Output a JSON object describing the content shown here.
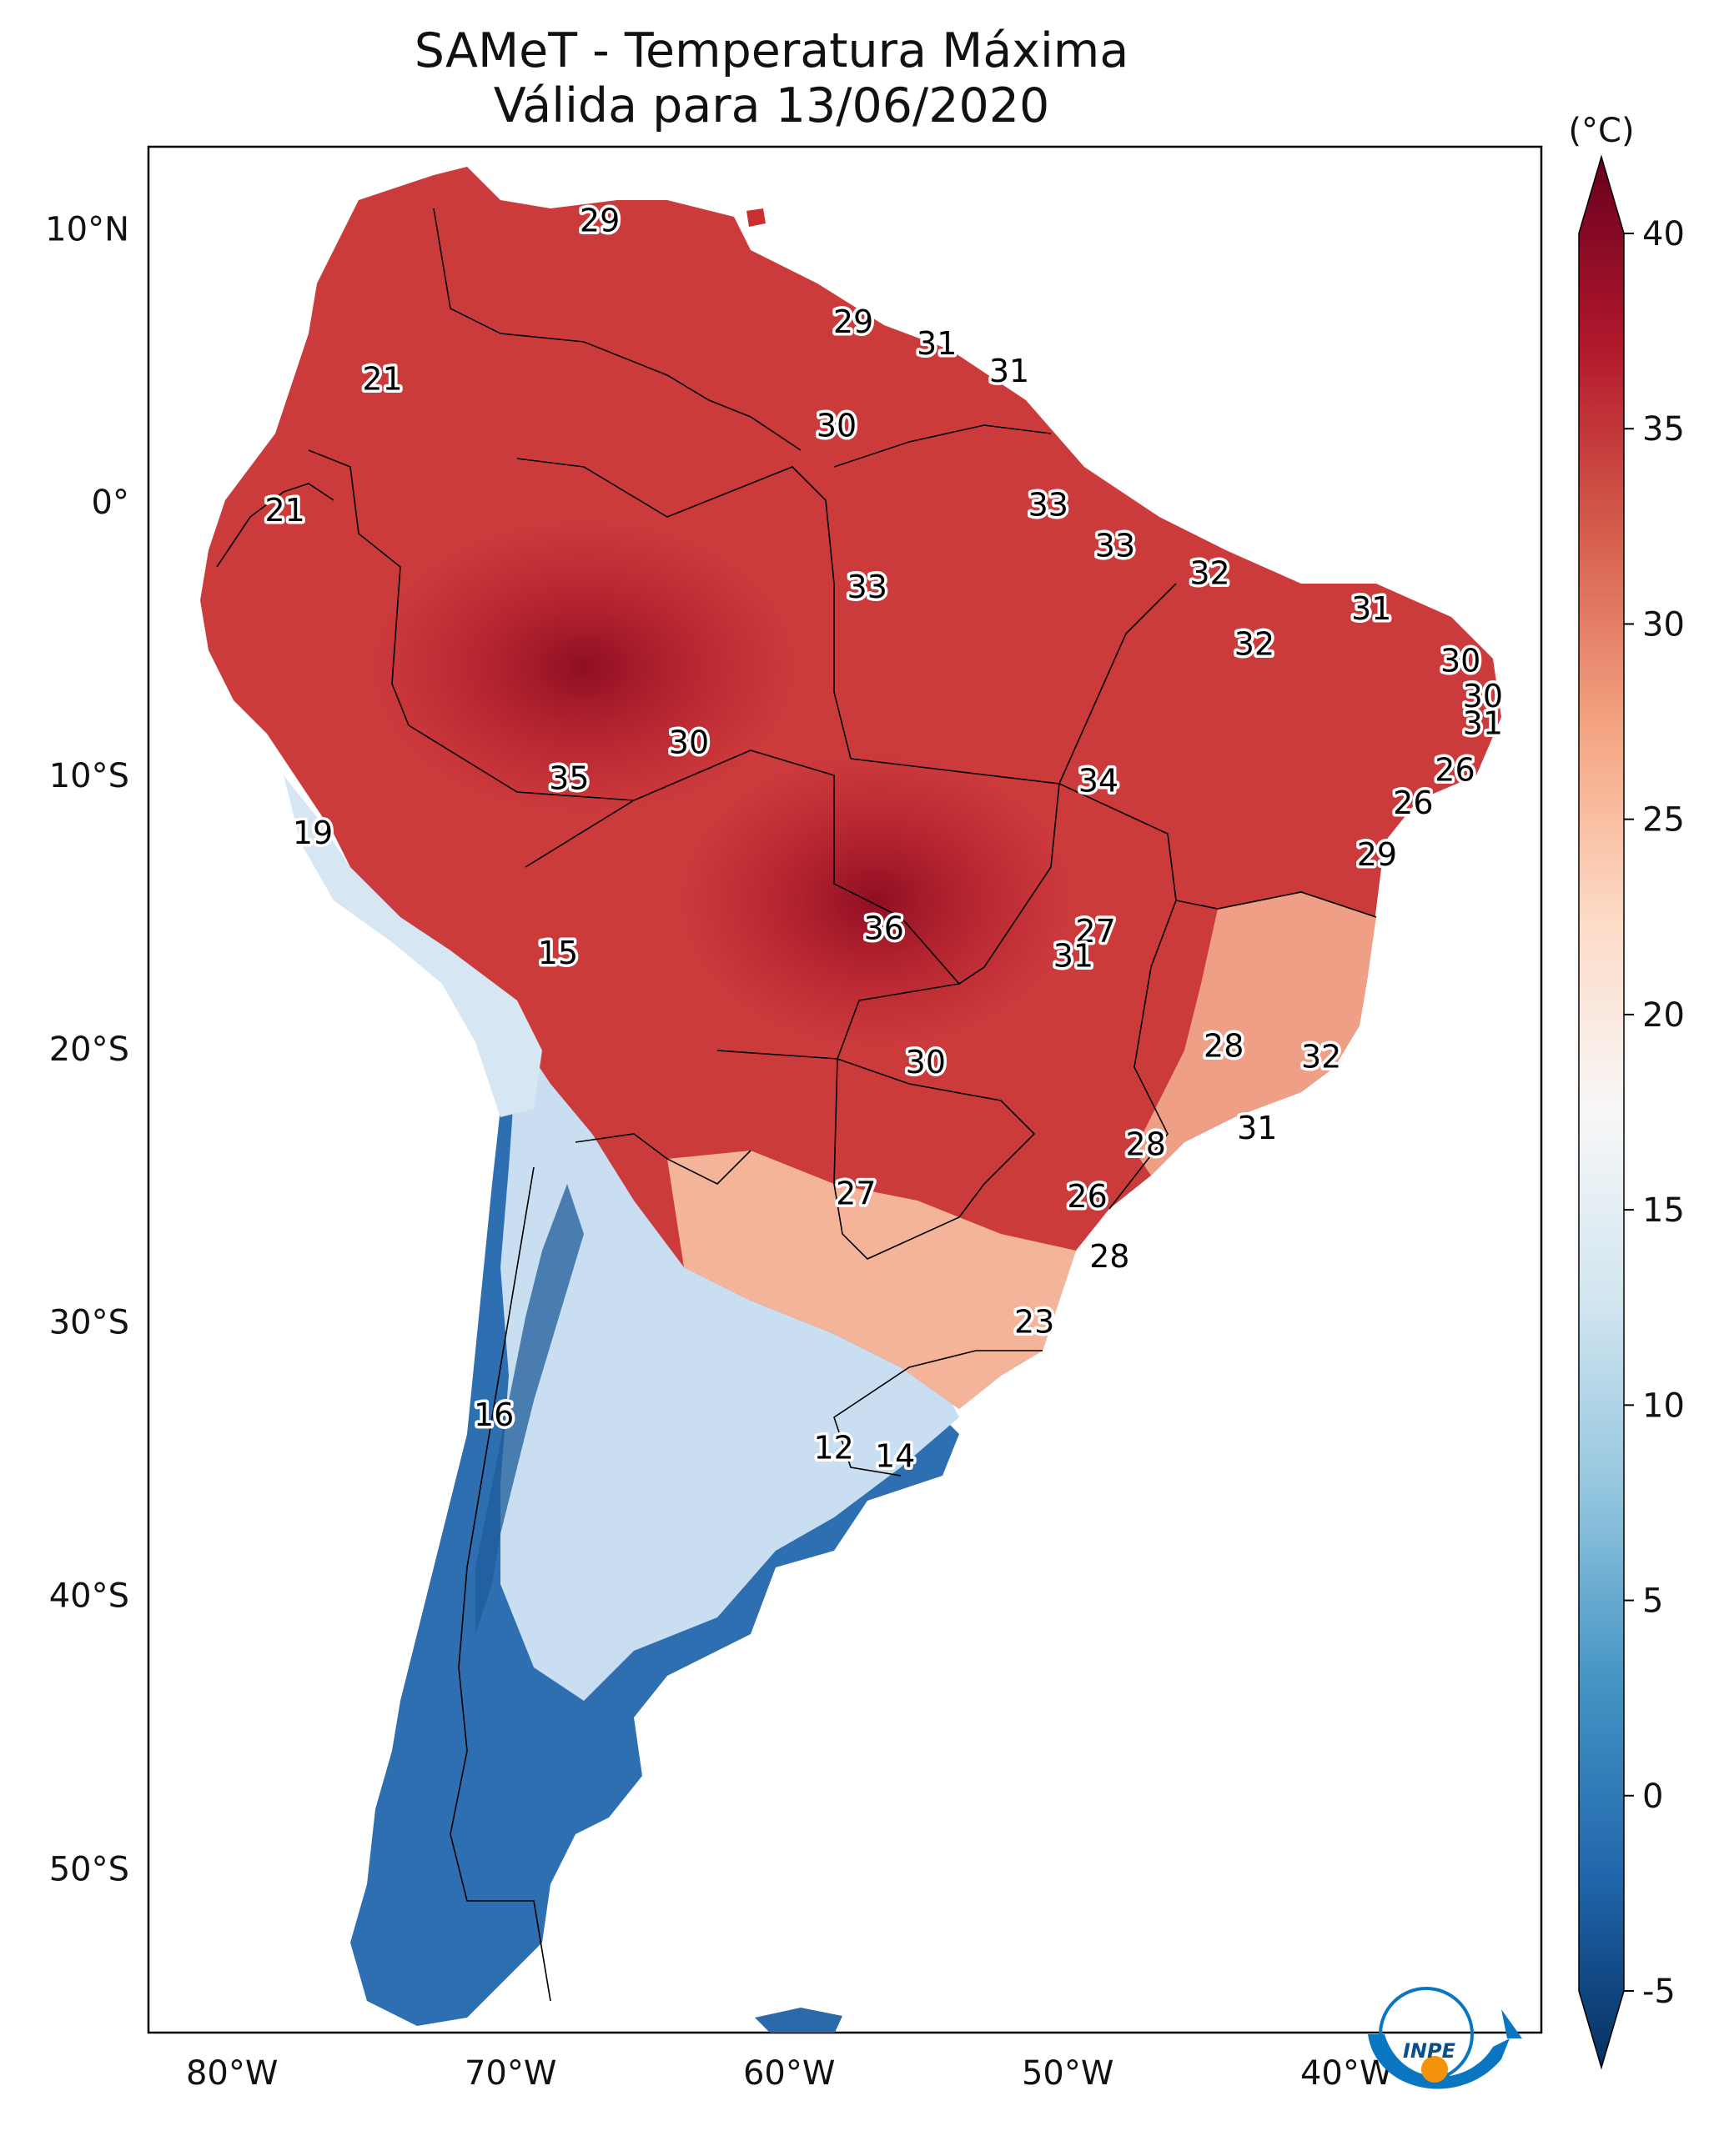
{
  "title": "SAMeT - Temperatura Máxima",
  "subtitle": "Válida para 13/06/2020",
  "colorbar": {
    "unit": "(°C)",
    "min": -5,
    "max": 40,
    "ticks": [
      "40",
      "35",
      "30",
      "25",
      "20",
      "15",
      "10",
      "5",
      "0",
      "-5"
    ],
    "extend": "both",
    "colormap": [
      "#053061",
      "#2166ac",
      "#4393c3",
      "#92c5de",
      "#d1e5f0",
      "#f7f7f7",
      "#fddbc7",
      "#f4a582",
      "#d6604d",
      "#b2182b",
      "#67001f"
    ]
  },
  "axes": {
    "lat_labels": [
      "10°N",
      "0°",
      "10°S",
      "20°S",
      "30°S",
      "40°S",
      "50°S"
    ],
    "lon_labels": [
      "80°W",
      "70°W",
      "60°W",
      "50°W",
      "40°W"
    ],
    "lat_range": [
      -56,
      13
    ],
    "lon_range": [
      -83,
      -33
    ]
  },
  "logo": {
    "text": "INPE"
  },
  "temperature_labels": [
    {
      "text": "29",
      "lon": -66.8,
      "lat": 10.3
    },
    {
      "text": "21",
      "lon": -74.6,
      "lat": 4.5
    },
    {
      "text": "29",
      "lon": -57.7,
      "lat": 6.6
    },
    {
      "text": "31",
      "lon": -54.7,
      "lat": 5.8
    },
    {
      "text": "31",
      "lon": -52.1,
      "lat": 4.8
    },
    {
      "text": "30",
      "lon": -58.3,
      "lat": 2.8
    },
    {
      "text": "21",
      "lon": -78.1,
      "lat": -0.3
    },
    {
      "text": "33",
      "lon": -50.7,
      "lat": -0.1
    },
    {
      "text": "33",
      "lon": -48.3,
      "lat": -1.6
    },
    {
      "text": "33",
      "lon": -57.2,
      "lat": -3.1
    },
    {
      "text": "32",
      "lon": -44.9,
      "lat": -2.6
    },
    {
      "text": "31",
      "lon": -39.1,
      "lat": -3.9
    },
    {
      "text": "32",
      "lon": -43.3,
      "lat": -5.2
    },
    {
      "text": "30",
      "lon": -35.9,
      "lat": -5.8
    },
    {
      "text": "30",
      "lon": -35.1,
      "lat": -7.1
    },
    {
      "text": "31",
      "lon": -35.1,
      "lat": -8.1
    },
    {
      "text": "30",
      "lon": -63.6,
      "lat": -8.8
    },
    {
      "text": "35",
      "lon": -67.9,
      "lat": -10.1
    },
    {
      "text": "34",
      "lon": -48.9,
      "lat": -10.2
    },
    {
      "text": "26",
      "lon": -36.1,
      "lat": -9.8
    },
    {
      "text": "26",
      "lon": -37.6,
      "lat": -11.0
    },
    {
      "text": "29",
      "lon": -38.9,
      "lat": -12.9
    },
    {
      "text": "19",
      "lon": -77.1,
      "lat": -12.1
    },
    {
      "text": "36",
      "lon": -56.6,
      "lat": -15.6
    },
    {
      "text": "27",
      "lon": -49.0,
      "lat": -15.7
    },
    {
      "text": "31",
      "lon": -49.8,
      "lat": -16.6
    },
    {
      "text": "15",
      "lon": -68.3,
      "lat": -16.5
    },
    {
      "text": "28",
      "lon": -44.4,
      "lat": -19.9
    },
    {
      "text": "32",
      "lon": -40.9,
      "lat": -20.3
    },
    {
      "text": "30",
      "lon": -55.1,
      "lat": -20.5
    },
    {
      "text": "28",
      "lon": -47.2,
      "lat": -23.5
    },
    {
      "text": "31",
      "lon": -43.2,
      "lat": -22.9
    },
    {
      "text": "27",
      "lon": -57.6,
      "lat": -25.3
    },
    {
      "text": "26",
      "lon": -49.3,
      "lat": -25.4
    },
    {
      "text": "28",
      "lon": -48.5,
      "lat": -27.6
    },
    {
      "text": "23",
      "lon": -51.2,
      "lat": -30.0
    },
    {
      "text": "16",
      "lon": -70.6,
      "lat": -33.4
    },
    {
      "text": "12",
      "lon": -58.4,
      "lat": -34.6
    },
    {
      "text": "14",
      "lon": -56.2,
      "lat": -34.9
    }
  ]
}
